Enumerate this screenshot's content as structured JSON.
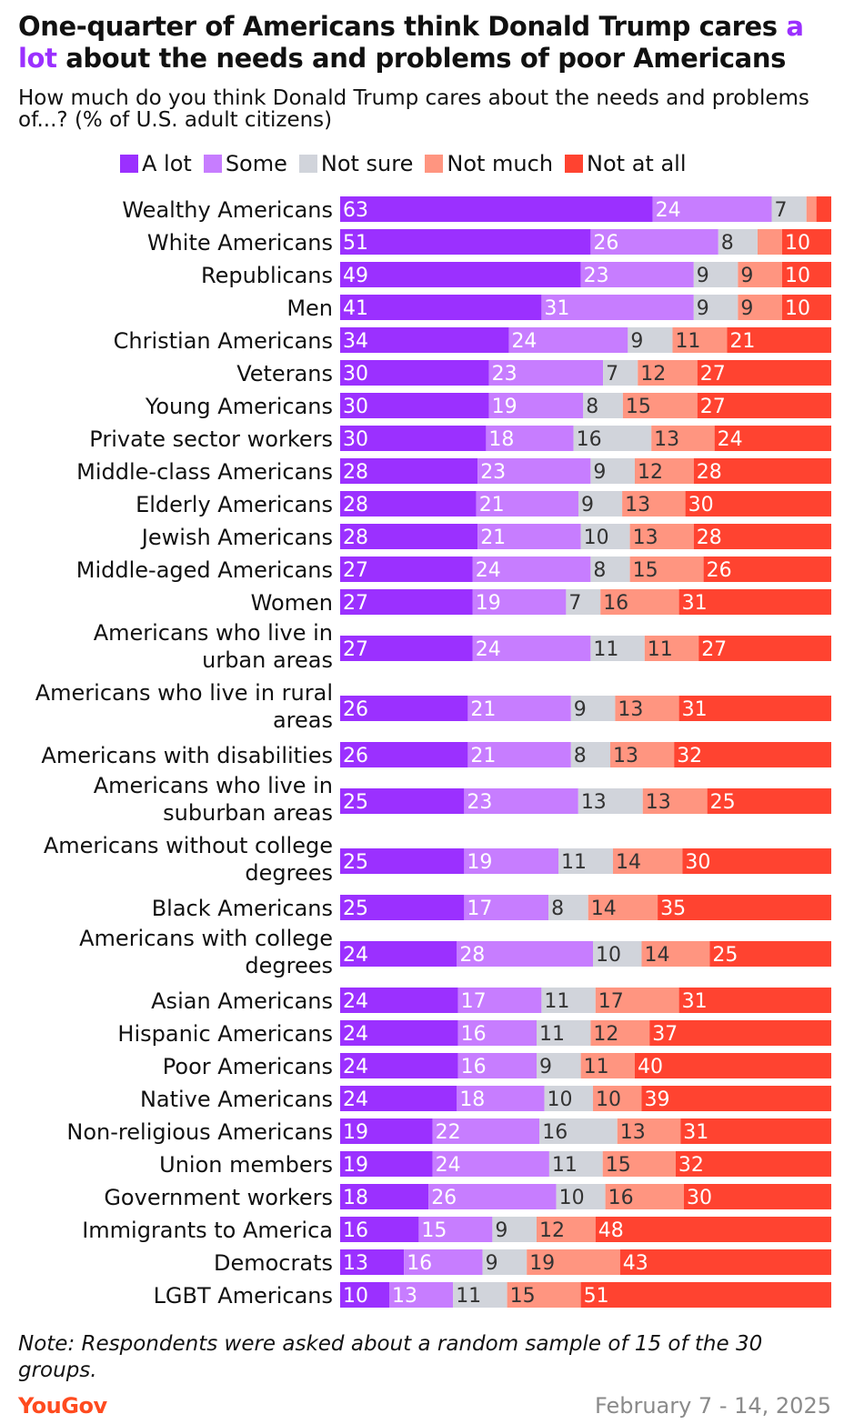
{
  "header": {
    "title_pre": "One-quarter of Americans think Donald Trump cares ",
    "title_accent": "a lot",
    "title_post": " about the needs and problems of poor Americans",
    "subtitle": "How much do you think Donald Trump cares about the needs and problems of...? (% of U.S. adult citizens)"
  },
  "footer": {
    "note": "Note: Respondents were asked about a random sample of 15 of the 30 groups.",
    "brand": "YouGov",
    "dates": "February 7 - 14, 2025"
  },
  "chart_data": {
    "type": "bar",
    "orientation": "horizontal",
    "stacked": true,
    "legend_position": "top",
    "xlim": [
      0,
      100
    ],
    "series": [
      {
        "name": "A lot",
        "color": "#9b30ff",
        "values": [
          63,
          51,
          49,
          41,
          34,
          30,
          30,
          30,
          28,
          28,
          28,
          27,
          27,
          27,
          26,
          26,
          25,
          25,
          25,
          24,
          24,
          24,
          24,
          24,
          19,
          19,
          18,
          16,
          13,
          10
        ]
      },
      {
        "name": "Some",
        "color": "#c77dff",
        "values": [
          24,
          26,
          23,
          31,
          24,
          23,
          19,
          18,
          23,
          21,
          21,
          24,
          19,
          24,
          21,
          21,
          23,
          19,
          17,
          28,
          17,
          16,
          16,
          18,
          22,
          24,
          26,
          15,
          16,
          13
        ]
      },
      {
        "name": "Not sure",
        "color": "#d1d4db",
        "values": [
          7,
          8,
          9,
          9,
          9,
          7,
          8,
          16,
          9,
          9,
          10,
          8,
          7,
          11,
          9,
          8,
          13,
          11,
          8,
          10,
          11,
          11,
          9,
          10,
          16,
          11,
          10,
          9,
          9,
          11
        ]
      },
      {
        "name": "Not much",
        "color": "#ff9580",
        "values": [
          2,
          5,
          9,
          9,
          11,
          12,
          15,
          13,
          12,
          13,
          13,
          15,
          16,
          11,
          13,
          13,
          13,
          14,
          14,
          14,
          17,
          12,
          11,
          10,
          13,
          15,
          16,
          12,
          19,
          15
        ]
      },
      {
        "name": "Not at all",
        "color": "#ff4330",
        "values": [
          3,
          10,
          10,
          10,
          21,
          27,
          27,
          24,
          28,
          30,
          28,
          26,
          31,
          27,
          31,
          32,
          25,
          30,
          35,
          25,
          31,
          37,
          40,
          39,
          31,
          32,
          30,
          48,
          43,
          51
        ]
      }
    ],
    "value_labels": [
      [
        "63",
        "24",
        "7",
        "",
        ""
      ],
      [
        "51",
        "26",
        "8",
        "",
        "10"
      ],
      [
        "49",
        "23",
        "9",
        "9",
        "10"
      ],
      [
        "41",
        "31",
        "9",
        "9",
        "10"
      ],
      [
        "34",
        "24",
        "9",
        "11",
        "21"
      ],
      [
        "30",
        "23",
        "7",
        "12",
        "27"
      ],
      [
        "30",
        "19",
        "8",
        "15",
        "27"
      ],
      [
        "30",
        "18",
        "16",
        "13",
        "24"
      ],
      [
        "28",
        "23",
        "9",
        "12",
        "28"
      ],
      [
        "28",
        "21",
        "9",
        "13",
        "30"
      ],
      [
        "28",
        "21",
        "10",
        "13",
        "28"
      ],
      [
        "27",
        "24",
        "8",
        "15",
        "26"
      ],
      [
        "27",
        "19",
        "7",
        "16",
        "31"
      ],
      [
        "27",
        "24",
        "11",
        "11",
        "27"
      ],
      [
        "26",
        "21",
        "9",
        "13",
        "31"
      ],
      [
        "26",
        "21",
        "8",
        "13",
        "32"
      ],
      [
        "25",
        "23",
        "13",
        "13",
        "25"
      ],
      [
        "25",
        "19",
        "11",
        "14",
        "30"
      ],
      [
        "25",
        "17",
        "8",
        "14",
        "35"
      ],
      [
        "24",
        "28",
        "10",
        "14",
        "25"
      ],
      [
        "24",
        "17",
        "11",
        "17",
        "31"
      ],
      [
        "24",
        "16",
        "11",
        "12",
        "37"
      ],
      [
        "24",
        "16",
        "9",
        "11",
        "40"
      ],
      [
        "24",
        "18",
        "10",
        "10",
        "39"
      ],
      [
        "19",
        "22",
        "16",
        "13",
        "31"
      ],
      [
        "19",
        "24",
        "11",
        "15",
        "32"
      ],
      [
        "18",
        "26",
        "10",
        "16",
        "30"
      ],
      [
        "16",
        "15",
        "9",
        "12",
        "48"
      ],
      [
        "13",
        "16",
        "9",
        "19",
        "43"
      ],
      [
        "10",
        "13",
        "11",
        "15",
        "51"
      ]
    ],
    "categories": [
      [
        "Wealthy Americans"
      ],
      [
        "White Americans"
      ],
      [
        "Republicans"
      ],
      [
        "Men"
      ],
      [
        "Christian Americans"
      ],
      [
        "Veterans"
      ],
      [
        "Young Americans"
      ],
      [
        "Private sector workers"
      ],
      [
        "Middle-class Americans"
      ],
      [
        "Elderly Americans"
      ],
      [
        "Jewish Americans"
      ],
      [
        "Middle-aged Americans"
      ],
      [
        "Women"
      ],
      [
        "Americans who live in",
        "urban areas"
      ],
      [
        "Americans who live in rural",
        "areas"
      ],
      [
        "Americans with disabilities"
      ],
      [
        "Americans who live in",
        "suburban areas"
      ],
      [
        "Americans without college",
        "degrees"
      ],
      [
        "Black Americans"
      ],
      [
        "Americans with college",
        "degrees"
      ],
      [
        "Asian Americans"
      ],
      [
        "Hispanic Americans"
      ],
      [
        "Poor Americans"
      ],
      [
        "Native Americans"
      ],
      [
        "Non-religious Americans"
      ],
      [
        "Union members"
      ],
      [
        "Government workers"
      ],
      [
        "Immigrants to America"
      ],
      [
        "Democrats"
      ],
      [
        "LGBT Americans"
      ]
    ]
  }
}
